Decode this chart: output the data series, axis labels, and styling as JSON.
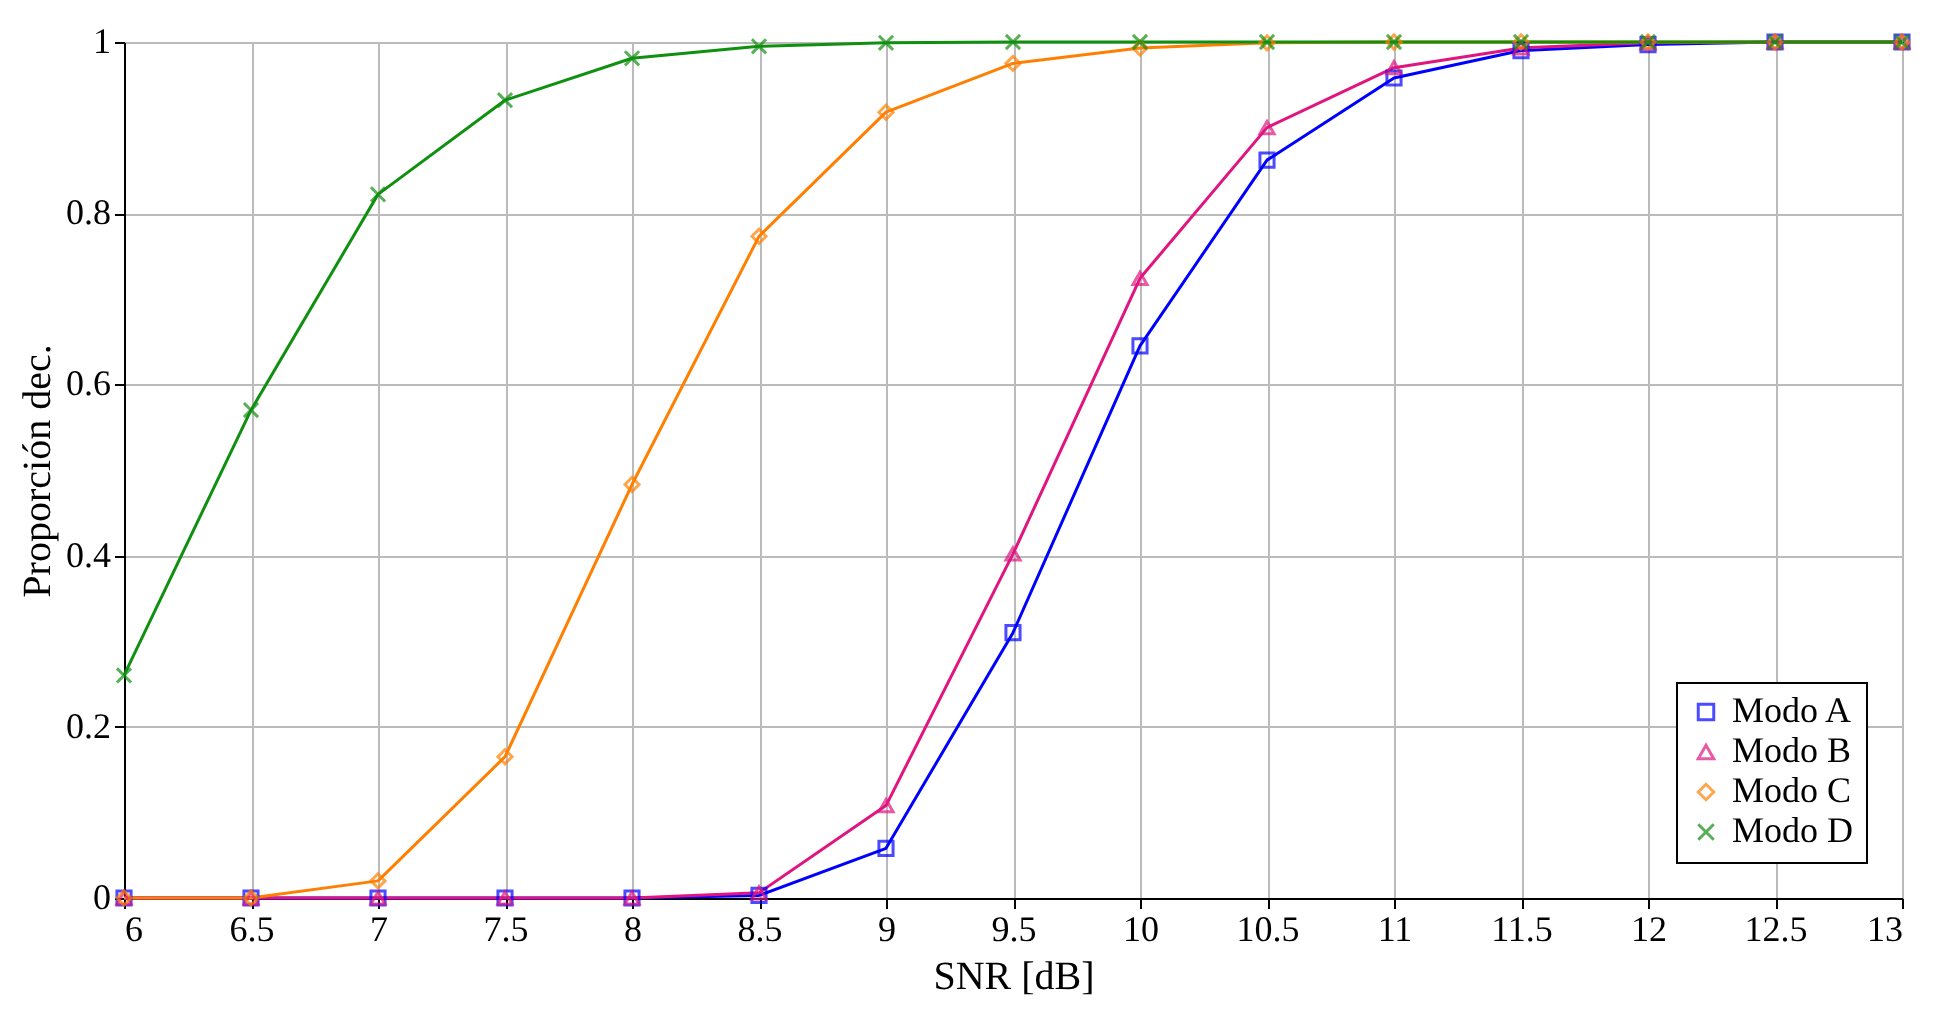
{
  "chart_data": {
    "type": "line",
    "xlabel": "SNR [dB]",
    "ylabel": "Proporción dec.",
    "x": [
      6,
      6.5,
      7,
      7.5,
      8,
      8.5,
      9,
      9.5,
      10,
      10.5,
      11,
      11.5,
      12,
      12.5,
      13
    ],
    "series": [
      {
        "name": "Modo A",
        "color": "#0000ff",
        "marker": "square",
        "values": [
          0,
          0,
          0,
          0,
          0,
          0.003,
          0.058,
          0.31,
          0.645,
          0.862,
          0.958,
          0.99,
          0.997,
          1,
          1
        ]
      },
      {
        "name": "Modo B",
        "color": "#e0157f",
        "marker": "triangle",
        "values": [
          0,
          0,
          0,
          0,
          0,
          0.006,
          0.108,
          0.402,
          0.724,
          0.9,
          0.97,
          0.993,
          0.999,
          1,
          1
        ]
      },
      {
        "name": "Modo C",
        "color": "#ff7f00",
        "marker": "diamond",
        "values": [
          0,
          0,
          0.02,
          0.165,
          0.483,
          0.773,
          0.918,
          0.975,
          0.993,
          0.999,
          1,
          1,
          1,
          1,
          1
        ]
      },
      {
        "name": "Modo D",
        "color": "#109010",
        "marker": "cross",
        "values": [
          0.26,
          0.57,
          0.822,
          0.932,
          0.981,
          0.995,
          0.999,
          1,
          1,
          1,
          1,
          1,
          1,
          1,
          1
        ]
      }
    ],
    "xlim": [
      6,
      13
    ],
    "xticks": [
      6,
      6.5,
      7,
      7.5,
      8,
      8.5,
      9,
      9.5,
      10,
      10.5,
      11,
      11.5,
      12,
      12.5,
      13
    ],
    "ylim": [
      0,
      1
    ],
    "yticks": [
      0,
      0.2,
      0.4,
      0.6,
      0.8,
      1
    ],
    "grid": true,
    "legend": "bottom right",
    "line_style": "solid"
  }
}
